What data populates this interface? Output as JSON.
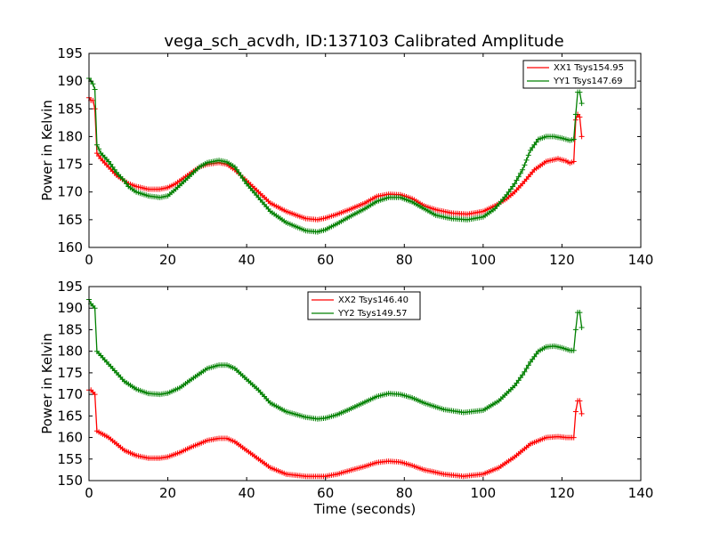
{
  "figure": {
    "title": "vega_sch_acvdh, ID:137103 Calibrated Amplitude"
  },
  "chart_data": [
    {
      "type": "line",
      "title": "vega_sch_acvdh, ID:137103 Calibrated Amplitude",
      "xlabel": "",
      "ylabel": "Power in Kelvin",
      "xlim": [
        0,
        140
      ],
      "ylim": [
        160,
        195
      ],
      "xticks": [
        0,
        20,
        40,
        60,
        80,
        100,
        120,
        140
      ],
      "yticks": [
        160,
        165,
        170,
        175,
        180,
        185,
        190,
        195
      ],
      "grid": false,
      "legend": "top-right",
      "series": [
        {
          "name": "XX1 Tsys154.95",
          "color": "#ff0000",
          "x": [
            0,
            0.5,
            1,
            1.5,
            2,
            3,
            5,
            7,
            9,
            10,
            12,
            15,
            18,
            20,
            22,
            25,
            28,
            30,
            33,
            35,
            37,
            40,
            43,
            46,
            50,
            55,
            58,
            60,
            63,
            66,
            70,
            73,
            76,
            79,
            82,
            85,
            88,
            92,
            96,
            100,
            103,
            106,
            108,
            110,
            113,
            116,
            119,
            121,
            122,
            123,
            123.5,
            124,
            124.5,
            125
          ],
          "y": [
            187,
            186.5,
            186.5,
            185,
            177,
            176,
            174.5,
            173,
            172,
            171.5,
            171,
            170.5,
            170.5,
            170.8,
            171.5,
            173,
            174.5,
            175,
            175.3,
            175,
            174,
            172,
            170,
            168,
            166.5,
            165.2,
            165,
            165.3,
            166,
            166.8,
            168,
            169.2,
            169.6,
            169.5,
            168.8,
            167.5,
            166.8,
            166.2,
            166,
            166.5,
            167.5,
            168.8,
            170,
            171.5,
            174,
            175.5,
            176,
            175.6,
            175.2,
            175.5,
            183,
            184,
            183.5,
            180
          ]
        },
        {
          "name": "YY1 Tsys147.69",
          "color": "#008000",
          "x": [
            0,
            0.5,
            1,
            1.5,
            2,
            3,
            5,
            7,
            9,
            10,
            12,
            15,
            18,
            20,
            22,
            25,
            28,
            30,
            33,
            35,
            37,
            40,
            43,
            46,
            50,
            55,
            58,
            60,
            63,
            66,
            70,
            73,
            76,
            79,
            82,
            85,
            88,
            92,
            96,
            100,
            103,
            106,
            108,
            110,
            112,
            114,
            116,
            118,
            120,
            122,
            123,
            123.5,
            124,
            124.5,
            125
          ],
          "y": [
            190.5,
            190,
            189.5,
            188.5,
            178.5,
            177,
            175.5,
            173.5,
            172,
            171,
            170,
            169.3,
            169,
            169.3,
            170.5,
            172.5,
            174.5,
            175.3,
            175.7,
            175.4,
            174.5,
            171.5,
            169,
            166.5,
            164.5,
            163,
            162.8,
            163.2,
            164.3,
            165.5,
            167,
            168.3,
            169,
            169,
            168.2,
            167,
            165.8,
            165.2,
            165,
            165.5,
            167,
            169.5,
            171.5,
            174,
            177.5,
            179.5,
            180,
            180,
            179.7,
            179.3,
            179.5,
            184,
            188,
            188,
            186
          ]
        }
      ]
    },
    {
      "type": "line",
      "title": "",
      "xlabel": "Time (seconds)",
      "ylabel": "Power in Kelvin",
      "xlim": [
        0,
        140
      ],
      "ylim": [
        150,
        195
      ],
      "xticks": [
        0,
        20,
        40,
        60,
        80,
        100,
        120,
        140
      ],
      "yticks": [
        150,
        155,
        160,
        165,
        170,
        175,
        180,
        185,
        190,
        195
      ],
      "grid": false,
      "legend": "top-center",
      "series": [
        {
          "name": "XX2 Tsys146.40",
          "color": "#ff0000",
          "x": [
            0,
            0.5,
            1,
            1.5,
            2,
            3,
            5,
            7,
            9,
            12,
            15,
            18,
            20,
            23,
            26,
            30,
            33,
            35,
            37,
            40,
            43,
            46,
            50,
            55,
            58,
            60,
            63,
            66,
            70,
            73,
            76,
            79,
            82,
            85,
            90,
            95,
            100,
            104,
            108,
            112,
            116,
            119,
            121,
            122,
            123,
            123.5,
            124,
            124.5,
            125
          ],
          "y": [
            171,
            171,
            170.5,
            170,
            161.5,
            161,
            160,
            158.5,
            157,
            155.8,
            155.2,
            155.2,
            155.5,
            156.5,
            157.8,
            159.3,
            159.8,
            159.8,
            159,
            157,
            155,
            153,
            151.5,
            151,
            151,
            151,
            151.5,
            152.3,
            153.3,
            154.2,
            154.5,
            154.3,
            153.5,
            152.5,
            151.5,
            151,
            151.5,
            153,
            155.5,
            158.5,
            160,
            160.2,
            160,
            160,
            160,
            166,
            168.5,
            168.5,
            165.5
          ]
        },
        {
          "name": "YY2 Tsys149.57",
          "color": "#008000",
          "x": [
            0,
            0.5,
            1,
            1.5,
            2,
            3,
            5,
            7,
            9,
            12,
            15,
            18,
            20,
            23,
            26,
            30,
            33,
            35,
            37,
            40,
            43,
            46,
            50,
            55,
            58,
            60,
            63,
            66,
            70,
            73,
            76,
            79,
            82,
            85,
            90,
            95,
            100,
            104,
            108,
            110,
            112,
            114,
            116,
            118,
            120,
            122,
            123,
            123.5,
            124,
            124.5,
            125
          ],
          "y": [
            192,
            191,
            190.5,
            190,
            180,
            179,
            177,
            175,
            173,
            171.2,
            170.2,
            170,
            170.3,
            171.5,
            173.5,
            176,
            176.8,
            176.8,
            176,
            173.5,
            171,
            168,
            166,
            164.7,
            164.3,
            164.5,
            165.3,
            166.5,
            168.2,
            169.5,
            170.2,
            170,
            169.2,
            168,
            166.5,
            165.8,
            166.3,
            168.5,
            172,
            174.5,
            177.5,
            180,
            181,
            181.2,
            180.8,
            180.2,
            180.2,
            185,
            189,
            189,
            185.5
          ]
        }
      ]
    }
  ]
}
